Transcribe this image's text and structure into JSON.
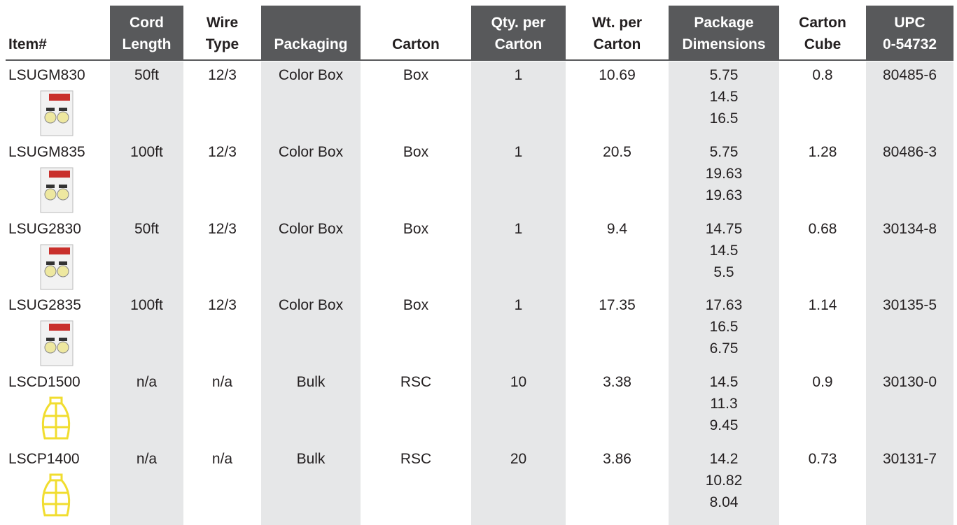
{
  "table": {
    "header": [
      [
        "Item#"
      ],
      [
        "Cord",
        "Length"
      ],
      [
        "Wire",
        "Type"
      ],
      [
        "Packaging"
      ],
      [
        "Carton"
      ],
      [
        "Qty. per",
        "Carton"
      ],
      [
        "Wt. per",
        "Carton"
      ],
      [
        "Package",
        "Dimensions"
      ],
      [
        "Carton",
        "Cube"
      ],
      [
        "UPC",
        "0-54732"
      ]
    ],
    "rows": [
      [
        "LSUGM830",
        "50ft",
        "12/3",
        "Color Box",
        "Box",
        "1",
        "10.69",
        [
          "5.75",
          "14.5",
          "16.5"
        ],
        "0.8",
        "80485-6"
      ],
      [
        "LSUGM835",
        "100ft",
        "12/3",
        "Color Box",
        "Box",
        "1",
        "20.5",
        [
          "5.75",
          "19.63",
          "19.63"
        ],
        "1.28",
        "80486-3"
      ],
      [
        "LSUG2830",
        "50ft",
        "12/3",
        "Color Box",
        "Box",
        "1",
        "9.4",
        [
          "14.75",
          "14.5",
          "5.5"
        ],
        "0.68",
        "30134-8"
      ],
      [
        "LSUG2835",
        "100ft",
        "12/3",
        "Color Box",
        "Box",
        "1",
        "17.35",
        [
          "17.63",
          "16.5",
          "6.75"
        ],
        "1.14",
        "30135-5"
      ],
      [
        "LSCD1500",
        "n/a",
        "n/a",
        "Bulk",
        "RSC",
        "10",
        "3.38",
        [
          "14.5",
          "11.3",
          "9.45"
        ],
        "0.9",
        "30130-0"
      ],
      [
        "LSCP1400",
        "n/a",
        "n/a",
        "Bulk",
        "RSC",
        "20",
        "3.86",
        [
          "14.2",
          "10.82",
          "8.04"
        ],
        "0.73",
        "30131-7"
      ]
    ]
  }
}
